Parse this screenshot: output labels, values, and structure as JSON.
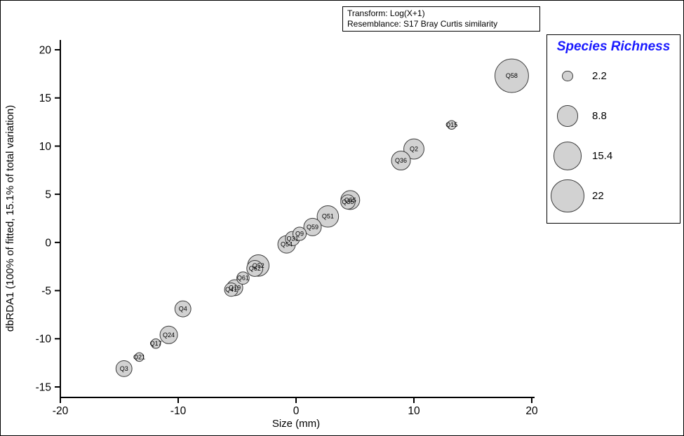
{
  "annotation": {
    "line1": "Transform: Log(X+1)",
    "line2": "Resemblance: S17 Bray Curtis similarity"
  },
  "chart_data": {
    "type": "scatter",
    "subtype": "bubble",
    "title": "",
    "xlabel": "Size (mm)",
    "ylabel": "dbRDA1 (100% of fitted, 15.1% of total variation)",
    "xlim": [
      -20,
      20
    ],
    "ylim": [
      -15,
      20
    ],
    "xticks": [
      -20,
      -10,
      0,
      10,
      20
    ],
    "yticks": [
      20,
      15,
      10,
      5,
      0,
      -5,
      -10,
      -15
    ],
    "grid": false,
    "bubble_fill": "#d2d2d2",
    "bubble_stroke": "#3c3c3c",
    "bubble_radius_scale": 5.1,
    "legend": {
      "title": "Species Richness",
      "title_color": "#1a1aff",
      "position": "right",
      "sizes": [
        2.2,
        8.8,
        15.4,
        22
      ]
    },
    "points": [
      {
        "label": "Q3",
        "x": -14.6,
        "y": -13.1,
        "richness": 5
      },
      {
        "label": "Q21",
        "x": -13.3,
        "y": -11.9,
        "richness": 1.5
      },
      {
        "label": "Q17",
        "x": -11.9,
        "y": -10.5,
        "richness": 1.8
      },
      {
        "label": "Q24",
        "x": -10.8,
        "y": -9.6,
        "richness": 6
      },
      {
        "label": "Q4",
        "x": -9.6,
        "y": -6.9,
        "richness": 5
      },
      {
        "label": "Q41",
        "x": -5.5,
        "y": -4.9,
        "richness": 3.5
      },
      {
        "label": "Q19",
        "x": -5.2,
        "y": -4.7,
        "richness": 5
      },
      {
        "label": "Q61",
        "x": -4.5,
        "y": -3.7,
        "richness": 3
      },
      {
        "label": "Q62",
        "x": -3.5,
        "y": -2.7,
        "richness": 5
      },
      {
        "label": "Q52",
        "x": -3.2,
        "y": -2.4,
        "richness": 9
      },
      {
        "label": "Q54",
        "x": -0.8,
        "y": -0.2,
        "richness": 6
      },
      {
        "label": "Q31",
        "x": -0.3,
        "y": 0.4,
        "richness": 4
      },
      {
        "label": "Q9",
        "x": 0.3,
        "y": 0.9,
        "richness": 3.5
      },
      {
        "label": "Q59",
        "x": 1.4,
        "y": 1.6,
        "richness": 6
      },
      {
        "label": "Q51",
        "x": 2.7,
        "y": 2.7,
        "richness": 9
      },
      {
        "label": "Q35",
        "x": 4.4,
        "y": 4.2,
        "richness": 4
      },
      {
        "label": "Q55",
        "x": 4.6,
        "y": 4.4,
        "richness": 7
      },
      {
        "label": "Q36",
        "x": 8.9,
        "y": 8.5,
        "richness": 7
      },
      {
        "label": "Q2",
        "x": 10.0,
        "y": 9.7,
        "richness": 8
      },
      {
        "label": "Q15",
        "x": 13.2,
        "y": 12.2,
        "richness": 1.5
      },
      {
        "label": "Q58",
        "x": 18.3,
        "y": 17.3,
        "richness": 22
      }
    ]
  }
}
